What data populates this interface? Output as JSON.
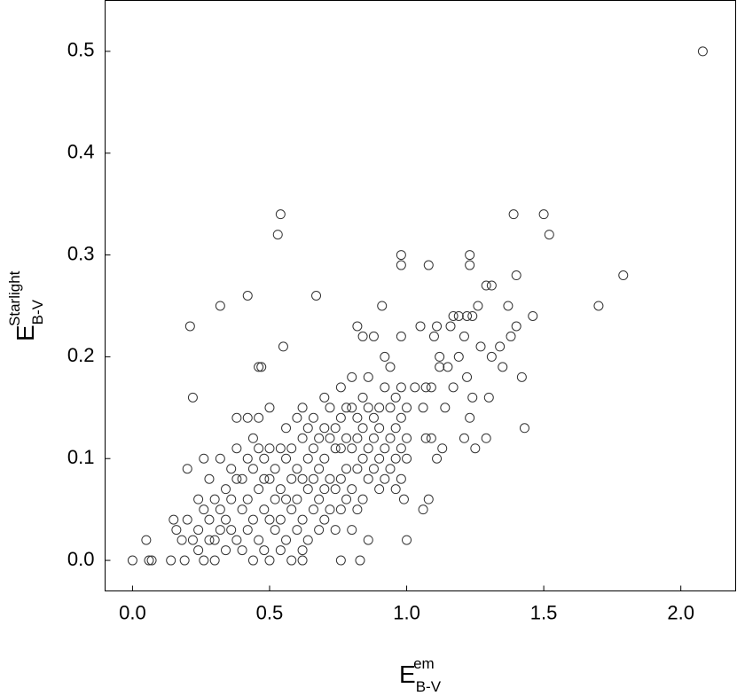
{
  "chart_data": {
    "type": "scatter",
    "x_label": {
      "base": "E",
      "sup": "em",
      "sub": "B-V"
    },
    "y_label": {
      "base": "E",
      "sup": "Starlight",
      "sub": "B-V"
    },
    "marker_color": "#333333",
    "xlim": [
      -0.1,
      2.2
    ],
    "ylim": [
      -0.03,
      0.55
    ],
    "xticks": [
      {
        "value": 0,
        "label": "0.0"
      },
      {
        "value": 0.5,
        "label": "0.5"
      },
      {
        "value": 1,
        "label": "1.0"
      },
      {
        "value": 1.5,
        "label": "1.5"
      },
      {
        "value": 2,
        "label": "2.0"
      }
    ],
    "yticks": [
      {
        "value": 0,
        "label": "0.0"
      },
      {
        "value": 0.1,
        "label": "0.1"
      },
      {
        "value": 0.2,
        "label": "0.2"
      },
      {
        "value": 0.3,
        "label": "0.3"
      },
      {
        "value": 0.4,
        "label": "0.4"
      },
      {
        "value": 0.5,
        "label": "0.5"
      }
    ],
    "x": [
      2.08,
      0.54,
      0.53,
      1.39,
      1.5,
      1.52,
      1.79,
      1.7,
      0.98,
      0.98,
      1.08,
      1.23,
      1.23,
      0.67,
      0.42,
      0.32,
      0.21,
      0.22,
      0.55,
      0.47,
      0.46,
      0.2,
      0.91,
      1.43,
      1.25,
      1.29,
      1.0,
      1.06,
      0.99,
      0.83,
      0.76,
      0.62,
      0.0,
      0.05,
      0.06,
      0.07,
      0.15,
      0.14,
      0.19,
      0.16,
      0.18,
      0.2,
      0.22,
      1.03,
      1.05,
      1.07,
      1.09,
      1.1,
      1.11,
      1.12,
      1.12,
      1.15,
      1.16,
      1.17,
      1.19,
      1.21,
      1.22,
      1.24,
      1.22,
      1.24,
      1.26,
      1.27,
      1.29,
      1.31,
      1.31,
      1.3,
      1.34,
      1.35,
      1.37,
      1.38,
      1.4,
      1.4,
      1.42,
      1.46,
      1.19,
      1.21,
      1.23,
      1.17,
      1.14,
      1.09,
      1.11,
      1.13,
      1.07,
      1.06,
      1.08,
      0.24,
      0.24,
      0.24,
      0.26,
      0.26,
      0.26,
      0.28,
      0.28,
      0.28,
      0.3,
      0.3,
      0.3,
      0.32,
      0.32,
      0.32,
      0.34,
      0.34,
      0.34,
      0.36,
      0.36,
      0.36,
      0.38,
      0.38,
      0.38,
      0.38,
      0.4,
      0.4,
      0.4,
      0.42,
      0.42,
      0.42,
      0.42,
      0.44,
      0.44,
      0.44,
      0.44,
      0.46,
      0.46,
      0.46,
      0.46,
      0.48,
      0.48,
      0.48,
      0.48,
      0.5,
      0.5,
      0.5,
      0.5,
      0.5,
      0.52,
      0.52,
      0.52,
      0.54,
      0.54,
      0.54,
      0.54,
      0.56,
      0.56,
      0.56,
      0.56,
      0.58,
      0.58,
      0.58,
      0.58,
      0.6,
      0.6,
      0.6,
      0.6,
      0.62,
      0.62,
      0.62,
      0.62,
      0.62,
      0.64,
      0.64,
      0.64,
      0.64,
      0.66,
      0.66,
      0.66,
      0.66,
      0.68,
      0.68,
      0.68,
      0.68,
      0.7,
      0.7,
      0.7,
      0.7,
      0.7,
      0.72,
      0.72,
      0.72,
      0.72,
      0.74,
      0.74,
      0.74,
      0.74,
      0.76,
      0.76,
      0.76,
      0.76,
      0.76,
      0.78,
      0.78,
      0.78,
      0.78,
      0.8,
      0.8,
      0.8,
      0.8,
      0.8,
      0.82,
      0.82,
      0.82,
      0.82,
      0.82,
      0.84,
      0.84,
      0.84,
      0.84,
      0.84,
      0.86,
      0.86,
      0.86,
      0.86,
      0.86,
      0.88,
      0.88,
      0.88,
      0.88,
      0.9,
      0.9,
      0.9,
      0.9,
      0.92,
      0.92,
      0.92,
      0.92,
      0.94,
      0.94,
      0.94,
      0.94,
      0.96,
      0.96,
      0.96,
      0.96,
      0.98,
      0.98,
      0.98,
      0.98,
      0.98,
      1.0,
      1.0,
      1.0
    ],
    "values": [
      0.5,
      0.34,
      0.32,
      0.34,
      0.34,
      0.32,
      0.28,
      0.25,
      0.3,
      0.29,
      0.29,
      0.3,
      0.29,
      0.26,
      0.26,
      0.25,
      0.23,
      0.16,
      0.21,
      0.19,
      0.19,
      0.09,
      0.25,
      0.13,
      0.11,
      0.12,
      0.02,
      0.05,
      0.06,
      0.0,
      0.0,
      0.0,
      0.0,
      0.02,
      0.0,
      0.0,
      0.04,
      0.0,
      0.0,
      0.03,
      0.02,
      0.04,
      0.02,
      0.17,
      0.23,
      0.17,
      0.17,
      0.22,
      0.23,
      0.2,
      0.19,
      0.19,
      0.23,
      0.24,
      0.24,
      0.22,
      0.24,
      0.24,
      0.18,
      0.16,
      0.25,
      0.21,
      0.27,
      0.27,
      0.2,
      0.16,
      0.21,
      0.19,
      0.25,
      0.22,
      0.28,
      0.23,
      0.18,
      0.24,
      0.2,
      0.12,
      0.14,
      0.17,
      0.15,
      0.12,
      0.1,
      0.11,
      0.12,
      0.15,
      0.06,
      0.06,
      0.03,
      0.01,
      0.1,
      0.05,
      0.0,
      0.08,
      0.04,
      0.02,
      0.06,
      0.02,
      0.0,
      0.1,
      0.05,
      0.03,
      0.07,
      0.04,
      0.01,
      0.09,
      0.06,
      0.03,
      0.14,
      0.11,
      0.08,
      0.02,
      0.08,
      0.05,
      0.01,
      0.14,
      0.1,
      0.06,
      0.03,
      0.12,
      0.09,
      0.04,
      0.0,
      0.14,
      0.11,
      0.07,
      0.02,
      0.1,
      0.08,
      0.05,
      0.01,
      0.15,
      0.11,
      0.08,
      0.04,
      0.0,
      0.09,
      0.06,
      0.03,
      0.11,
      0.07,
      0.04,
      0.01,
      0.13,
      0.1,
      0.06,
      0.02,
      0.11,
      0.08,
      0.05,
      0.0,
      0.14,
      0.09,
      0.06,
      0.03,
      0.15,
      0.12,
      0.08,
      0.04,
      0.01,
      0.13,
      0.1,
      0.07,
      0.02,
      0.14,
      0.11,
      0.08,
      0.05,
      0.12,
      0.09,
      0.06,
      0.03,
      0.16,
      0.13,
      0.1,
      0.07,
      0.04,
      0.15,
      0.12,
      0.08,
      0.05,
      0.13,
      0.11,
      0.07,
      0.03,
      0.17,
      0.14,
      0.11,
      0.08,
      0.05,
      0.15,
      0.12,
      0.09,
      0.06,
      0.18,
      0.15,
      0.11,
      0.07,
      0.03,
      0.23,
      0.14,
      0.12,
      0.09,
      0.05,
      0.22,
      0.16,
      0.13,
      0.1,
      0.06,
      0.18,
      0.15,
      0.11,
      0.08,
      0.02,
      0.22,
      0.14,
      0.12,
      0.09,
      0.15,
      0.13,
      0.1,
      0.07,
      0.2,
      0.17,
      0.11,
      0.08,
      0.19,
      0.15,
      0.12,
      0.09,
      0.16,
      0.13,
      0.1,
      0.07,
      0.22,
      0.17,
      0.14,
      0.11,
      0.08,
      0.15,
      0.12,
      0.1
    ]
  }
}
